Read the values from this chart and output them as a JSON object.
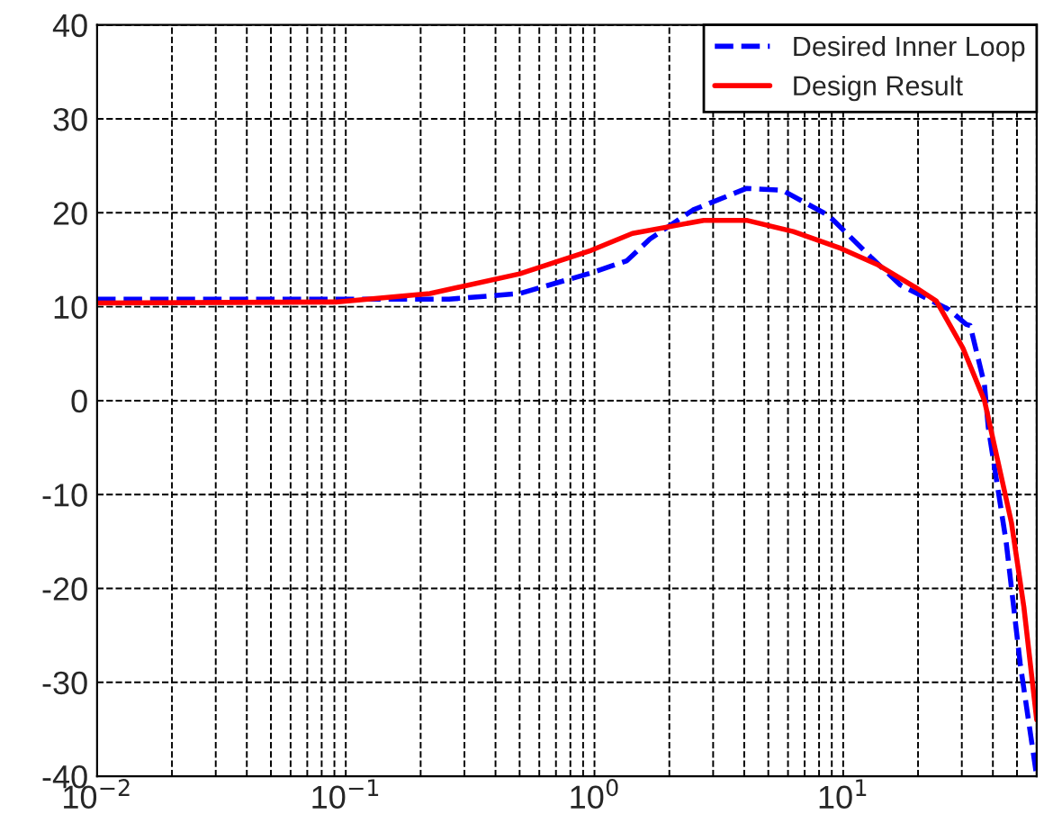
{
  "chart_data": {
    "type": "line",
    "log": "x",
    "grid": true,
    "legend": "top right",
    "xlim": [
      0.01,
      60
    ],
    "ylim": [
      -40,
      40
    ],
    "xticks": [
      {
        "value": 0.01,
        "label": "10$^{−2}$"
      },
      {
        "value": 0.1,
        "label": "10$^{−1}$"
      },
      {
        "value": 1,
        "label": "10$^{0}$"
      },
      {
        "value": 10,
        "label": "10$^{1}$"
      }
    ],
    "yticks": [
      -40,
      -30,
      -20,
      -10,
      0,
      10,
      20,
      30,
      40
    ],
    "series": [
      {
        "name": "Desired Inner Loop",
        "color": "#0000ff",
        "line_style": "dashed",
        "x": [
          0.01,
          0.1,
          0.26,
          0.5,
          0.97,
          1.35,
          1.67,
          2.49,
          4.09,
          5.69,
          8.75,
          13.0,
          17.0,
          26.6,
          31.3,
          32.4,
          37.0,
          38.3,
          45.2,
          51.5,
          60
        ],
        "values": [
          10.8,
          10.8,
          10.8,
          11.4,
          13.6,
          14.9,
          17.2,
          20.3,
          22.6,
          22.4,
          19.7,
          15.2,
          12.3,
          9.7,
          8.1,
          8,
          1.7,
          -2.8,
          -15,
          -28,
          -40
        ]
      },
      {
        "name": "Design Result",
        "color": "#ff0000",
        "line_style": "solid",
        "x": [
          0.01,
          0.091,
          0.218,
          0.5,
          0.97,
          1.42,
          2.75,
          4.09,
          6.3,
          9.8,
          13.7,
          19.7,
          23.7,
          30.3,
          37.0,
          47.5,
          53.3,
          60
        ],
        "values": [
          10.4,
          10.5,
          11.4,
          13.5,
          16,
          17.8,
          19.2,
          19.2,
          18,
          16.2,
          14.5,
          12,
          10.6,
          5.6,
          0,
          -13,
          -22,
          -34
        ]
      }
    ]
  }
}
